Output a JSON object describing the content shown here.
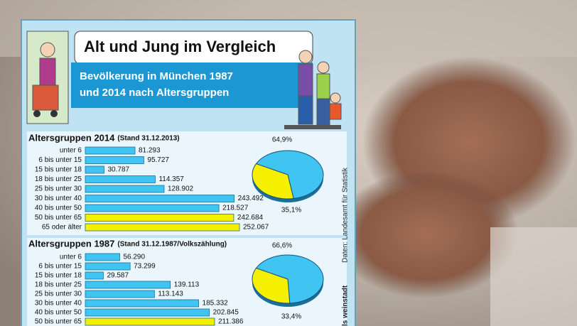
{
  "header": {
    "title": "Alt und Jung im Vergleich",
    "subtitle": [
      "Bevölkerung in München 1987",
      "und 2014 nach Altersgruppen"
    ]
  },
  "source": "Daten: Landesamt für Statistik",
  "credit": "ls weinstadt",
  "chart_data": [
    {
      "type": "bar",
      "title": "Altersgruppen 2014",
      "subtitle": "(Stand 31.12.2013)",
      "categories": [
        "unter 6",
        "6 bis unter 15",
        "15 bis unter 18",
        "18 bis unter 25",
        "25 bis unter 30",
        "30 bis unter 40",
        "40 bis unter 50",
        "50 bis unter 65",
        "65 oder älter"
      ],
      "values": [
        81293,
        95727,
        30787,
        114357,
        128902,
        243492,
        218527,
        242684,
        252067
      ],
      "value_labels": [
        "81.293",
        "95.727",
        "30.787",
        "114.357",
        "128.902",
        "243.492",
        "218.527",
        "242.684",
        "252.067"
      ],
      "colors": [
        "#40c4f2",
        "#40c4f2",
        "#40c4f2",
        "#40c4f2",
        "#40c4f2",
        "#40c4f2",
        "#40c4f2",
        "#f5f000",
        "#f5f000"
      ]
    },
    {
      "type": "pie",
      "values": [
        64.9,
        35.1
      ],
      "value_labels": [
        "64,9%",
        "35,1%"
      ],
      "colors": [
        "#40c4f2",
        "#f5f000"
      ]
    },
    {
      "type": "bar",
      "title": "Altersgruppen 1987",
      "subtitle": "(Stand 31.12.1987/Volkszählung)",
      "categories": [
        "unter 6",
        "6 bis unter 15",
        "15 bis unter 18",
        "18 bis unter 25",
        "25 bis unter 30",
        "30 bis unter 40",
        "40 bis unter 50",
        "50 bis unter 65"
      ],
      "values": [
        56290,
        73299,
        29587,
        139113,
        113143,
        185332,
        202845,
        211386
      ],
      "value_labels": [
        "56.290",
        "73.299",
        "29.587",
        "139.113",
        "113.143",
        "185.332",
        "202.845",
        "211.386"
      ],
      "colors": [
        "#40c4f2",
        "#40c4f2",
        "#40c4f2",
        "#40c4f2",
        "#40c4f2",
        "#40c4f2",
        "#40c4f2",
        "#f5f000"
      ]
    },
    {
      "type": "pie",
      "values": [
        66.6,
        33.4
      ],
      "value_labels": [
        "66,6%",
        "33,4%"
      ],
      "colors": [
        "#40c4f2",
        "#f5f000"
      ]
    }
  ]
}
